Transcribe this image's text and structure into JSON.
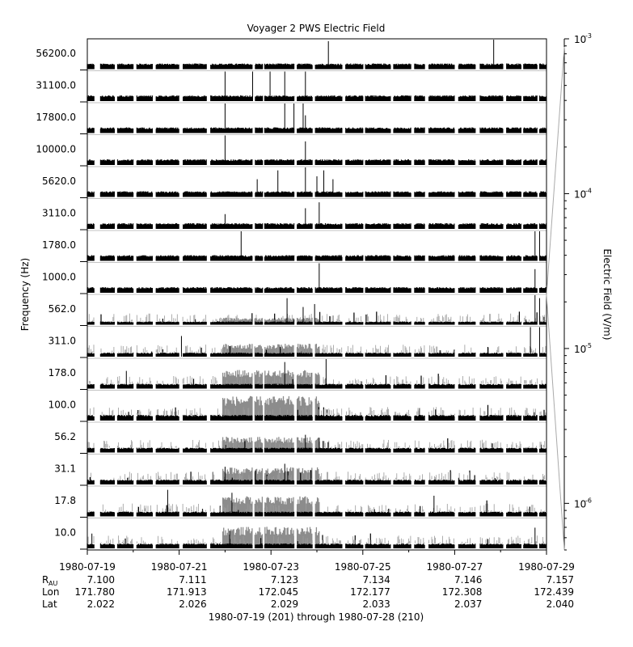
{
  "chart_data": {
    "type": "stacked-line-panels",
    "title": "Voyager 2 PWS Electric Field",
    "ylabel": "Frequency (Hz)",
    "xlabel": "1980-07-19 (201) through 1980-07-28 (210)",
    "channels": [
      "56200.0",
      "31100.0",
      "17800.0",
      "10000.0",
      "5620.0",
      "3110.0",
      "1780.0",
      "1000.0",
      "562.0",
      "311.0",
      "178.0",
      "100.0",
      "56.2",
      "31.1",
      "17.8",
      "10.0"
    ],
    "x_ticks": [
      "1980-07-19",
      "1980-07-21",
      "1980-07-23",
      "1980-07-25",
      "1980-07-27",
      "1980-07-29"
    ],
    "ephemeris": {
      "rows": [
        {
          "label": "R",
          "sub": "AU",
          "values": [
            "7.100",
            "7.111",
            "7.123",
            "7.134",
            "7.146",
            "7.157"
          ]
        },
        {
          "label": "Lon",
          "sub": "",
          "values": [
            "171.780",
            "171.913",
            "172.045",
            "172.177",
            "172.308",
            "172.439"
          ]
        },
        {
          "label": "Lat",
          "sub": "",
          "values": [
            "2.022",
            "2.026",
            "2.029",
            "2.033",
            "2.037",
            "2.040"
          ]
        }
      ]
    },
    "colorbar": {
      "label": "Electric Field (V/m)",
      "scale": "log",
      "range": [
        5e-07,
        0.001
      ],
      "ticks": [
        {
          "base": "10",
          "exp": "-3",
          "value": 0.001
        },
        {
          "base": "10",
          "exp": "-4",
          "value": 0.0001
        },
        {
          "base": "10",
          "exp": "-5",
          "value": 1e-05
        },
        {
          "base": "10",
          "exp": "-6",
          "value": 1e-06
        }
      ]
    },
    "data_gaps_days": [
      [
        0.15,
        0.28
      ],
      [
        0.6,
        0.65
      ],
      [
        1.0,
        1.08
      ],
      [
        1.42,
        1.49
      ],
      [
        2.0,
        2.08
      ],
      [
        2.6,
        2.68
      ],
      [
        3.6,
        3.65
      ],
      [
        3.82,
        3.86
      ],
      [
        4.5,
        4.56
      ],
      [
        4.9,
        4.96
      ],
      [
        5.55,
        5.62
      ],
      [
        6.0,
        6.05
      ],
      [
        6.6,
        6.66
      ],
      [
        7.05,
        7.12
      ],
      [
        7.35,
        7.43
      ],
      [
        8.0,
        8.08
      ],
      [
        8.45,
        8.55
      ],
      [
        9.05,
        9.12
      ],
      [
        9.45,
        9.5
      ],
      [
        9.8,
        9.85
      ]
    ],
    "spikes": [
      {
        "ch": 0,
        "day": 5.25,
        "amp": 0.95
      },
      {
        "ch": 0,
        "day": 8.85,
        "amp": 1.0
      },
      {
        "ch": 1,
        "day": 3.0,
        "amp": 1.0
      },
      {
        "ch": 1,
        "day": 3.6,
        "amp": 1.0
      },
      {
        "ch": 1,
        "day": 3.98,
        "amp": 1.0
      },
      {
        "ch": 1,
        "day": 4.3,
        "amp": 1.0
      },
      {
        "ch": 1,
        "day": 4.75,
        "amp": 1.0
      },
      {
        "ch": 2,
        "day": 3.0,
        "amp": 1.0
      },
      {
        "ch": 2,
        "day": 4.3,
        "amp": 1.0
      },
      {
        "ch": 2,
        "day": 4.5,
        "amp": 1.0
      },
      {
        "ch": 2,
        "day": 4.7,
        "amp": 1.0
      },
      {
        "ch": 2,
        "day": 4.75,
        "amp": 0.6
      },
      {
        "ch": 3,
        "day": 3.0,
        "amp": 1.0
      },
      {
        "ch": 3,
        "day": 4.75,
        "amp": 0.8
      },
      {
        "ch": 4,
        "day": 3.7,
        "amp": 0.6
      },
      {
        "ch": 4,
        "day": 4.15,
        "amp": 0.9
      },
      {
        "ch": 4,
        "day": 4.75,
        "amp": 1.0
      },
      {
        "ch": 4,
        "day": 5.0,
        "amp": 0.7
      },
      {
        "ch": 4,
        "day": 5.15,
        "amp": 0.9
      },
      {
        "ch": 4,
        "day": 5.35,
        "amp": 0.6
      },
      {
        "ch": 5,
        "day": 3.0,
        "amp": 0.5
      },
      {
        "ch": 5,
        "day": 4.75,
        "amp": 0.7
      },
      {
        "ch": 5,
        "day": 5.05,
        "amp": 0.9
      },
      {
        "ch": 6,
        "day": 3.35,
        "amp": 1.0
      },
      {
        "ch": 6,
        "day": 9.75,
        "amp": 1.0
      },
      {
        "ch": 6,
        "day": 9.85,
        "amp": 1.0
      },
      {
        "ch": 7,
        "day": 5.05,
        "amp": 1.0
      },
      {
        "ch": 7,
        "day": 9.75,
        "amp": 0.8
      },
      {
        "ch": 8,
        "day": 4.35,
        "amp": 0.9
      },
      {
        "ch": 8,
        "day": 4.7,
        "amp": 0.6
      },
      {
        "ch": 8,
        "day": 4.95,
        "amp": 0.7
      },
      {
        "ch": 8,
        "day": 9.75,
        "amp": 1.0
      },
      {
        "ch": 8,
        "day": 9.85,
        "amp": 0.9
      },
      {
        "ch": 9,
        "day": 2.05,
        "amp": 0.7
      },
      {
        "ch": 9,
        "day": 9.65,
        "amp": 1.0
      },
      {
        "ch": 9,
        "day": 9.85,
        "amp": 1.0
      },
      {
        "ch": 10,
        "day": 0.85,
        "amp": 0.6
      },
      {
        "ch": 10,
        "day": 4.3,
        "amp": 0.9
      },
      {
        "ch": 10,
        "day": 5.2,
        "amp": 1.0
      },
      {
        "ch": 12,
        "day": 4.75,
        "amp": 0.6
      },
      {
        "ch": 12,
        "day": 5.05,
        "amp": 0.5
      },
      {
        "ch": 13,
        "day": 3.0,
        "amp": 0.6
      },
      {
        "ch": 13,
        "day": 4.3,
        "amp": 0.7
      },
      {
        "ch": 14,
        "day": 1.75,
        "amp": 0.9
      },
      {
        "ch": 14,
        "day": 3.15,
        "amp": 0.8
      },
      {
        "ch": 14,
        "day": 7.55,
        "amp": 0.7
      },
      {
        "ch": 15,
        "day": 0.1,
        "amp": 0.5
      },
      {
        "ch": 15,
        "day": 3.1,
        "amp": 0.6
      },
      {
        "ch": 15,
        "day": 9.75,
        "amp": 0.7
      }
    ],
    "enhanced_region": {
      "start_day": 2.95,
      "end_day": 5.05,
      "channels": [
        8,
        9,
        10,
        11,
        12,
        13,
        14,
        15
      ],
      "levels": [
        0.25,
        0.45,
        0.65,
        0.85,
        0.55,
        0.6,
        0.7,
        0.75
      ]
    }
  }
}
